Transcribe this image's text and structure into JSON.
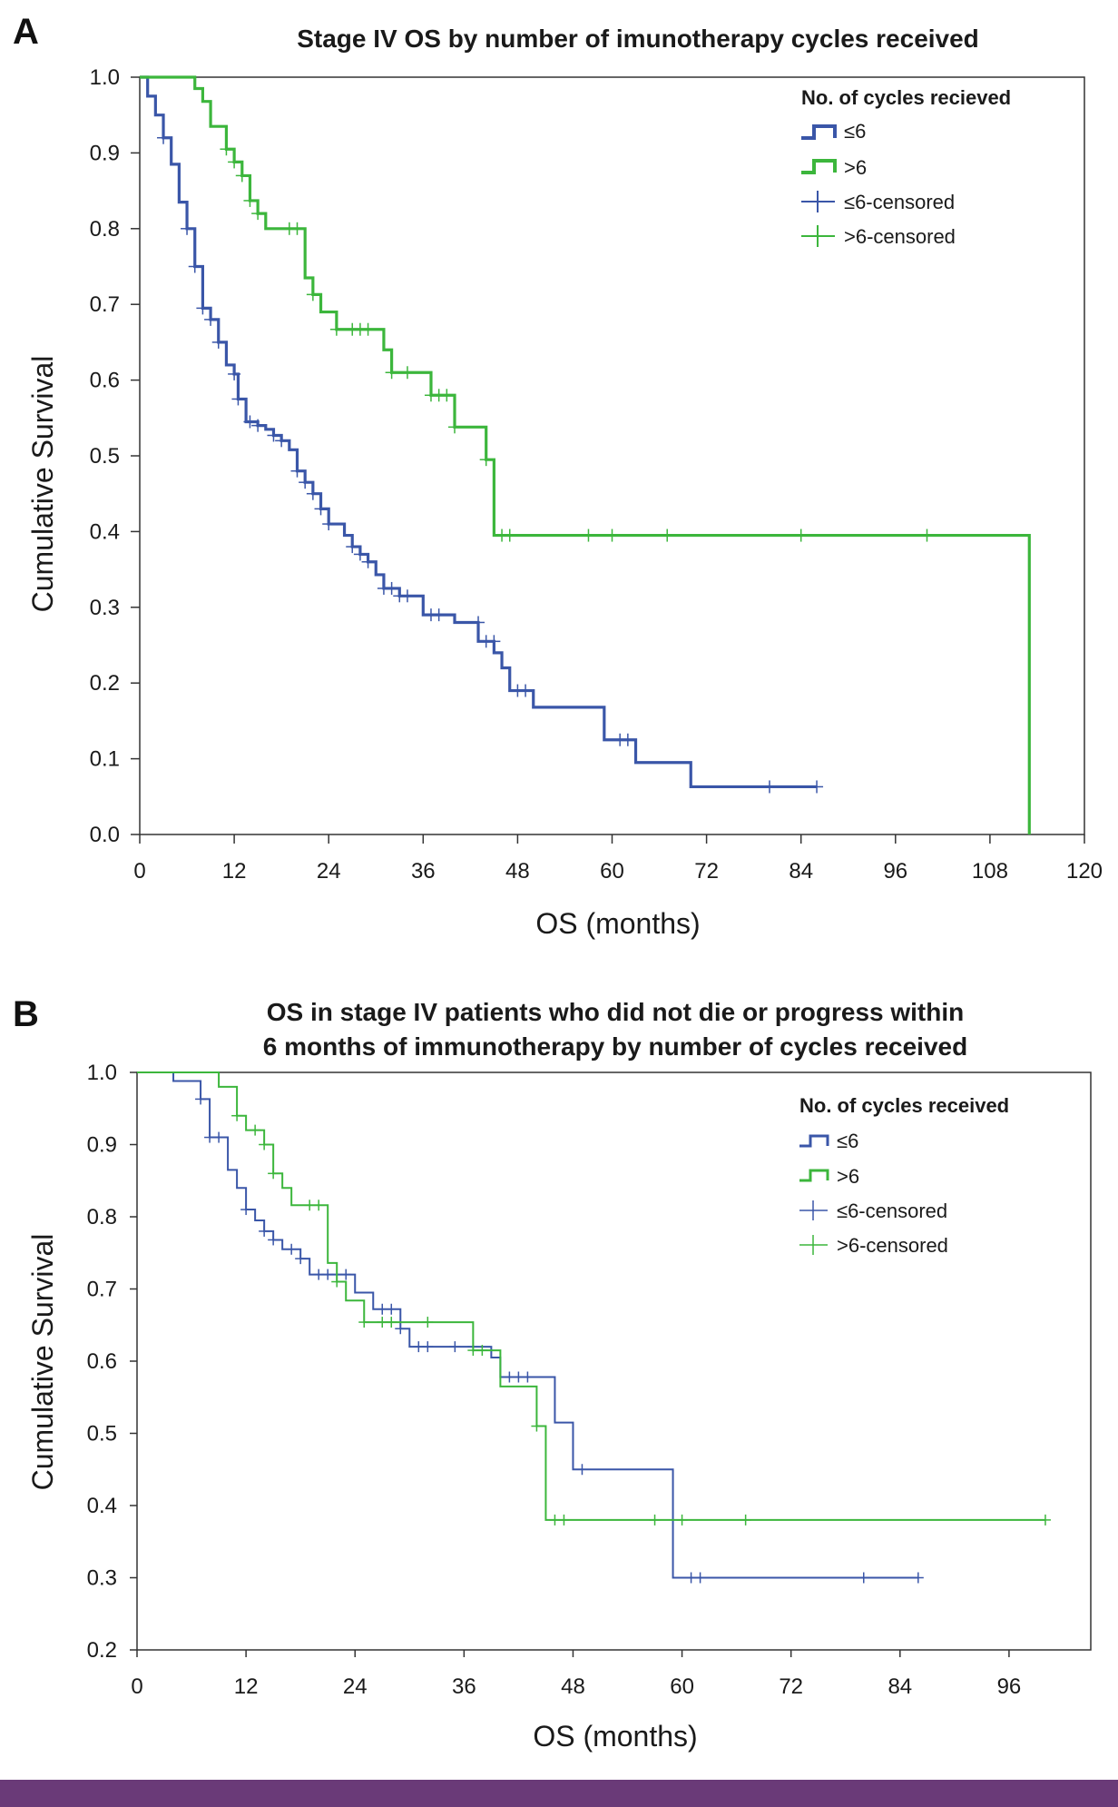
{
  "chart_data": [
    {
      "panel": "A",
      "type": "line",
      "subtype": "kaplan-meier",
      "title_lines": [
        "Stage IV OS by number of imunotherapy cycles received"
      ],
      "xlabel": "OS (months)",
      "ylabel": "Cumulative Survival",
      "xlim": [
        0,
        120
      ],
      "ylim": [
        0,
        1
      ],
      "xticks": [
        0,
        12,
        24,
        36,
        48,
        60,
        72,
        84,
        96,
        108,
        120
      ],
      "yticks": [
        0.0,
        0.1,
        0.2,
        0.3,
        0.4,
        0.5,
        0.6,
        0.7,
        0.8,
        0.9,
        1.0
      ],
      "ytick_labels": [
        "0.0",
        "0.1",
        "0.2",
        "0.3",
        "0.4",
        "0.5",
        "0.6",
        "0.7",
        "0.8",
        "0.9",
        "1.0"
      ],
      "legend": {
        "title": "No. of cycles recieved",
        "entries": [
          "≤6",
          ">6",
          "≤6-censored",
          ">6-censored"
        ],
        "placement": "top-right"
      },
      "series": [
        {
          "name": "≤6",
          "color": "#3a56a8",
          "steps": [
            [
              0,
              1.0
            ],
            [
              1,
              0.975
            ],
            [
              2,
              0.95
            ],
            [
              3,
              0.92
            ],
            [
              4,
              0.885
            ],
            [
              5,
              0.835
            ],
            [
              6,
              0.8
            ],
            [
              7,
              0.75
            ],
            [
              8,
              0.695
            ],
            [
              9,
              0.68
            ],
            [
              10,
              0.65
            ],
            [
              11,
              0.62
            ],
            [
              12,
              0.608
            ],
            [
              12.5,
              0.575
            ],
            [
              13.5,
              0.545
            ],
            [
              15,
              0.54
            ],
            [
              16,
              0.535
            ],
            [
              17,
              0.527
            ],
            [
              18,
              0.52
            ],
            [
              19,
              0.508
            ],
            [
              20,
              0.48
            ],
            [
              21,
              0.465
            ],
            [
              22,
              0.45
            ],
            [
              23,
              0.43
            ],
            [
              24,
              0.41
            ],
            [
              26,
              0.395
            ],
            [
              27,
              0.38
            ],
            [
              28,
              0.37
            ],
            [
              29,
              0.36
            ],
            [
              30,
              0.343
            ],
            [
              31,
              0.325
            ],
            [
              33,
              0.315
            ],
            [
              36,
              0.29
            ],
            [
              40,
              0.28
            ],
            [
              43,
              0.255
            ],
            [
              45,
              0.24
            ],
            [
              46,
              0.22
            ],
            [
              47,
              0.19
            ],
            [
              50,
              0.168
            ],
            [
              59,
              0.125
            ],
            [
              63,
              0.095
            ],
            [
              70,
              0.063
            ],
            [
              86,
              0.063
            ]
          ],
          "censored": [
            [
              3,
              0.92
            ],
            [
              6,
              0.8
            ],
            [
              7,
              0.75
            ],
            [
              8,
              0.695
            ],
            [
              9,
              0.68
            ],
            [
              10,
              0.65
            ],
            [
              12,
              0.608
            ],
            [
              12.5,
              0.575
            ],
            [
              14,
              0.545
            ],
            [
              15,
              0.54
            ],
            [
              17,
              0.527
            ],
            [
              18,
              0.52
            ],
            [
              20,
              0.48
            ],
            [
              21,
              0.465
            ],
            [
              22,
              0.45
            ],
            [
              23,
              0.43
            ],
            [
              24,
              0.41
            ],
            [
              27,
              0.38
            ],
            [
              28,
              0.37
            ],
            [
              29,
              0.36
            ],
            [
              31,
              0.325
            ],
            [
              32,
              0.325
            ],
            [
              33,
              0.315
            ],
            [
              34,
              0.315
            ],
            [
              37,
              0.29
            ],
            [
              38,
              0.29
            ],
            [
              43,
              0.28
            ],
            [
              44,
              0.255
            ],
            [
              45,
              0.255
            ],
            [
              48,
              0.19
            ],
            [
              49,
              0.19
            ],
            [
              61,
              0.125
            ],
            [
              62,
              0.125
            ],
            [
              80,
              0.063
            ],
            [
              86,
              0.063
            ]
          ]
        },
        {
          "name": ">6",
          "color": "#3cb63c",
          "steps": [
            [
              0,
              1.0
            ],
            [
              7,
              0.985
            ],
            [
              8,
              0.968
            ],
            [
              9,
              0.935
            ],
            [
              11,
              0.905
            ],
            [
              12,
              0.888
            ],
            [
              13,
              0.87
            ],
            [
              14,
              0.837
            ],
            [
              15,
              0.82
            ],
            [
              16,
              0.8
            ],
            [
              21,
              0.735
            ],
            [
              22,
              0.713
            ],
            [
              23,
              0.69
            ],
            [
              25,
              0.667
            ],
            [
              31,
              0.64
            ],
            [
              32,
              0.61
            ],
            [
              37,
              0.58
            ],
            [
              40,
              0.538
            ],
            [
              44,
              0.495
            ],
            [
              45,
              0.395
            ],
            [
              113,
              0.0
            ]
          ],
          "censored": [
            [
              11,
              0.905
            ],
            [
              12,
              0.888
            ],
            [
              13,
              0.87
            ],
            [
              14,
              0.837
            ],
            [
              15,
              0.82
            ],
            [
              19,
              0.8
            ],
            [
              20,
              0.8
            ],
            [
              22,
              0.713
            ],
            [
              25,
              0.667
            ],
            [
              27,
              0.667
            ],
            [
              28,
              0.667
            ],
            [
              29,
              0.667
            ],
            [
              32,
              0.61
            ],
            [
              34,
              0.61
            ],
            [
              37,
              0.58
            ],
            [
              38,
              0.58
            ],
            [
              39,
              0.58
            ],
            [
              40,
              0.538
            ],
            [
              44,
              0.495
            ],
            [
              46,
              0.395
            ],
            [
              47,
              0.395
            ],
            [
              57,
              0.395
            ],
            [
              60,
              0.395
            ],
            [
              67,
              0.395
            ],
            [
              84,
              0.395
            ],
            [
              100,
              0.395
            ]
          ]
        }
      ]
    },
    {
      "panel": "B",
      "type": "line",
      "subtype": "kaplan-meier",
      "title_lines": [
        "OS in stage IV patients who did not die or progress within",
        "6 months of immunotherapy by number of cycles received"
      ],
      "xlabel": "OS (months)",
      "ylabel": "Cumulative Survival",
      "xlim": [
        0,
        105
      ],
      "ylim": [
        0.2,
        1.0
      ],
      "xticks": [
        0,
        12,
        24,
        36,
        48,
        60,
        72,
        84,
        96
      ],
      "yticks": [
        0.2,
        0.3,
        0.4,
        0.5,
        0.6,
        0.7,
        0.8,
        0.9,
        1.0
      ],
      "ytick_labels": [
        "0.2",
        "0.3",
        "0.4",
        "0.5",
        "0.6",
        "0.7",
        "0.8",
        "0.9",
        "1.0"
      ],
      "legend": {
        "title": "No. of cycles received",
        "entries": [
          "≤6",
          ">6",
          "≤6-censored",
          ">6-censored"
        ],
        "placement": "top-right"
      },
      "series": [
        {
          "name": "≤6",
          "color": "#3a56a8",
          "steps": [
            [
              0,
              1.0
            ],
            [
              4,
              0.988
            ],
            [
              7,
              0.963
            ],
            [
              8,
              0.91
            ],
            [
              10,
              0.865
            ],
            [
              11,
              0.84
            ],
            [
              12,
              0.81
            ],
            [
              13,
              0.795
            ],
            [
              14,
              0.78
            ],
            [
              15,
              0.768
            ],
            [
              16,
              0.755
            ],
            [
              18,
              0.742
            ],
            [
              19,
              0.72
            ],
            [
              24,
              0.695
            ],
            [
              26,
              0.672
            ],
            [
              29,
              0.645
            ],
            [
              30,
              0.62
            ],
            [
              39,
              0.605
            ],
            [
              40,
              0.578
            ],
            [
              46,
              0.515
            ],
            [
              48,
              0.45
            ],
            [
              59,
              0.3
            ],
            [
              86,
              0.3
            ]
          ],
          "censored": [
            [
              7,
              0.963
            ],
            [
              8,
              0.91
            ],
            [
              9,
              0.91
            ],
            [
              12,
              0.81
            ],
            [
              14,
              0.78
            ],
            [
              15,
              0.768
            ],
            [
              17,
              0.755
            ],
            [
              18,
              0.742
            ],
            [
              20,
              0.72
            ],
            [
              21,
              0.72
            ],
            [
              22,
              0.72
            ],
            [
              23,
              0.72
            ],
            [
              27,
              0.672
            ],
            [
              28,
              0.672
            ],
            [
              29,
              0.645
            ],
            [
              31,
              0.62
            ],
            [
              32,
              0.62
            ],
            [
              35,
              0.62
            ],
            [
              37,
              0.62
            ],
            [
              41,
              0.578
            ],
            [
              42,
              0.578
            ],
            [
              43,
              0.578
            ],
            [
              49,
              0.45
            ],
            [
              61,
              0.3
            ],
            [
              62,
              0.3
            ],
            [
              80,
              0.3
            ],
            [
              86,
              0.3
            ]
          ]
        },
        {
          "name": ">6",
          "color": "#3cb63c",
          "steps": [
            [
              0,
              1.0
            ],
            [
              9,
              0.98
            ],
            [
              11,
              0.94
            ],
            [
              12,
              0.92
            ],
            [
              14,
              0.9
            ],
            [
              15,
              0.86
            ],
            [
              16,
              0.84
            ],
            [
              17,
              0.816
            ],
            [
              21,
              0.736
            ],
            [
              22,
              0.71
            ],
            [
              23,
              0.684
            ],
            [
              25,
              0.654
            ],
            [
              37,
              0.615
            ],
            [
              40,
              0.565
            ],
            [
              44,
              0.51
            ],
            [
              45,
              0.38
            ],
            [
              100,
              0.38
            ]
          ],
          "censored": [
            [
              11,
              0.94
            ],
            [
              13,
              0.92
            ],
            [
              14,
              0.9
            ],
            [
              15,
              0.86
            ],
            [
              19,
              0.816
            ],
            [
              20,
              0.816
            ],
            [
              22,
              0.71
            ],
            [
              25,
              0.654
            ],
            [
              27,
              0.654
            ],
            [
              28,
              0.654
            ],
            [
              32,
              0.654
            ],
            [
              37,
              0.615
            ],
            [
              38,
              0.615
            ],
            [
              44,
              0.51
            ],
            [
              46,
              0.38
            ],
            [
              47,
              0.38
            ],
            [
              57,
              0.38
            ],
            [
              60,
              0.38
            ],
            [
              67,
              0.38
            ],
            [
              100,
              0.38
            ]
          ]
        }
      ]
    }
  ],
  "footer_color": "#6a3a78"
}
